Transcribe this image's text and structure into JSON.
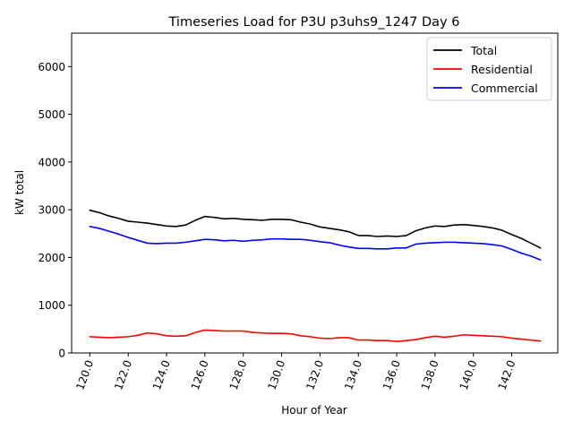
{
  "chart_data": {
    "type": "line",
    "title": "Timeseries Load for P3U p3uhs9_1247  Day 6",
    "xlabel": "Hour of Year",
    "ylabel": "kW total",
    "xlim": [
      119.05,
      144.4
    ],
    "ylim": [
      0,
      6700
    ],
    "xticks": [
      120,
      122,
      124,
      126,
      128,
      130,
      132,
      134,
      136,
      138,
      140,
      142
    ],
    "xtick_labels": [
      "120.0",
      "122.0",
      "124.0",
      "126.0",
      "128.0",
      "130.0",
      "132.0",
      "134.0",
      "136.0",
      "138.0",
      "140.0",
      "142.0"
    ],
    "yticks": [
      0,
      1000,
      2000,
      3000,
      4000,
      5000,
      6000
    ],
    "ytick_labels": [
      "0",
      "1000",
      "2000",
      "3000",
      "4000",
      "5000",
      "6000"
    ],
    "legend_position": "top-right",
    "x": [
      120.0,
      120.5,
      121.0,
      121.5,
      122.0,
      122.5,
      123.0,
      123.5,
      124.0,
      124.5,
      125.0,
      125.5,
      126.0,
      126.5,
      127.0,
      127.5,
      128.0,
      128.5,
      129.0,
      129.5,
      130.0,
      130.5,
      131.0,
      131.5,
      132.0,
      132.5,
      133.0,
      133.5,
      134.0,
      134.5,
      135.0,
      135.5,
      136.0,
      136.5,
      137.0,
      137.5,
      138.0,
      138.5,
      139.0,
      139.5,
      140.0,
      140.5,
      141.0,
      141.5,
      142.0,
      142.5,
      143.0,
      143.5
    ],
    "series": [
      {
        "name": "Total",
        "color": "#000000",
        "values": [
          2990,
          2940,
          2870,
          2820,
          2760,
          2740,
          2720,
          2690,
          2660,
          2650,
          2680,
          2780,
          2860,
          2840,
          2810,
          2820,
          2800,
          2790,
          2780,
          2800,
          2800,
          2790,
          2740,
          2700,
          2640,
          2610,
          2580,
          2540,
          2460,
          2460,
          2440,
          2450,
          2440,
          2460,
          2560,
          2620,
          2660,
          2650,
          2680,
          2690,
          2670,
          2650,
          2620,
          2570,
          2480,
          2400,
          2300,
          2200
        ]
      },
      {
        "name": "Residential",
        "color": "#ff0000",
        "values": [
          340,
          330,
          320,
          330,
          340,
          370,
          420,
          400,
          360,
          350,
          360,
          430,
          480,
          470,
          460,
          460,
          460,
          430,
          420,
          410,
          410,
          400,
          360,
          340,
          310,
          300,
          320,
          320,
          270,
          270,
          260,
          260,
          240,
          260,
          280,
          320,
          350,
          330,
          350,
          380,
          370,
          360,
          350,
          340,
          310,
          290,
          270,
          250
        ]
      },
      {
        "name": "Commercial",
        "color": "#0000ff",
        "values": [
          2650,
          2610,
          2550,
          2490,
          2420,
          2360,
          2300,
          2290,
          2300,
          2300,
          2320,
          2350,
          2380,
          2370,
          2350,
          2360,
          2340,
          2360,
          2370,
          2390,
          2390,
          2380,
          2380,
          2360,
          2330,
          2310,
          2260,
          2220,
          2190,
          2190,
          2180,
          2180,
          2200,
          2200,
          2280,
          2300,
          2310,
          2320,
          2320,
          2310,
          2300,
          2290,
          2270,
          2240,
          2170,
          2090,
          2030,
          1950
        ]
      }
    ]
  }
}
